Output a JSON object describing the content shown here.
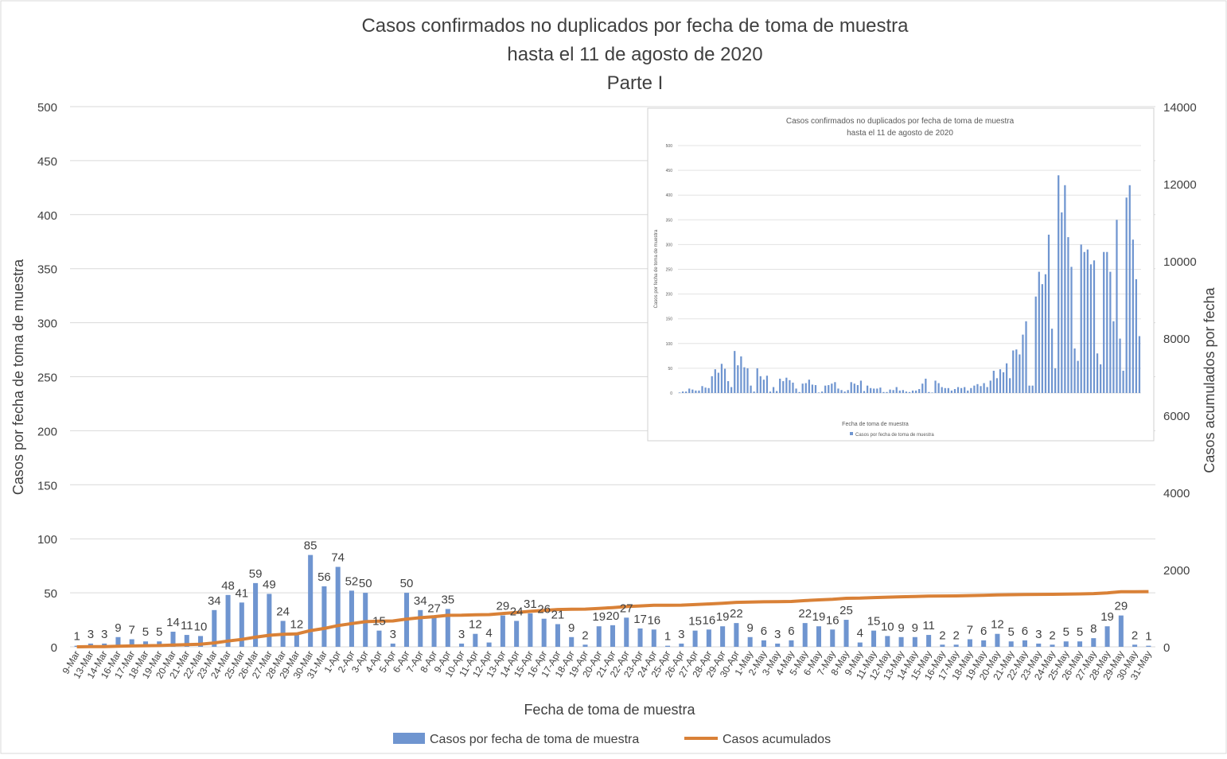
{
  "chart_data": [
    {
      "type": "bar",
      "title": [
        "Casos confirmados no duplicados por fecha de toma de muestra",
        "hasta el 11 de agosto de 2020",
        "Parte I"
      ],
      "xlabel": "Fecha de toma de muestra",
      "ylabel": "Casos por fecha de toma de muestra",
      "y2label": "Casos acumulados por fecha",
      "ylim": [
        0,
        500
      ],
      "y2lim": [
        0,
        14000
      ],
      "yticks": [
        "0",
        "50",
        "100",
        "150",
        "200",
        "250",
        "300",
        "350",
        "400",
        "450",
        "500"
      ],
      "y2ticks": [
        "0",
        "2000",
        "4000",
        "6000",
        "8000",
        "10000",
        "12000",
        "14000"
      ],
      "grid": true,
      "legend_position": "bottom",
      "categories": [
        "9-Mar",
        "13-Mar",
        "14-Mar",
        "16-Mar",
        "17-Mar",
        "18-Mar",
        "19-Mar",
        "20-Mar",
        "21-Mar",
        "22-Mar",
        "23-Mar",
        "24-Mar",
        "25-Mar",
        "26-Mar",
        "27-Mar",
        "28-Mar",
        "29-Mar",
        "30-Mar",
        "31-Mar",
        "1-Apr",
        "2-Apr",
        "3-Apr",
        "4-Apr",
        "5-Apr",
        "6-Apr",
        "7-Apr",
        "8-Apr",
        "9-Apr",
        "10-Apr",
        "11-Apr",
        "12-Apr",
        "13-Apr",
        "14-Apr",
        "15-Apr",
        "16-Apr",
        "17-Apr",
        "18-Apr",
        "19-Apr",
        "20-Apr",
        "21-Apr",
        "22-Apr",
        "23-Apr",
        "24-Apr",
        "25-Apr",
        "26-Apr",
        "27-Apr",
        "28-Apr",
        "29-Apr",
        "30-Apr",
        "1-May",
        "2-May",
        "3-May",
        "4-May",
        "5-May",
        "6-May",
        "7-May",
        "8-May",
        "9-May",
        "11-May",
        "12-May",
        "13-May",
        "14-May",
        "15-May",
        "16-May",
        "17-May",
        "18-May",
        "19-May",
        "20-May",
        "21-May",
        "22-May",
        "23-May",
        "24-May",
        "25-May",
        "26-May",
        "27-May",
        "28-May",
        "29-May",
        "30-May",
        "31-May"
      ],
      "series": [
        {
          "name": "Casos por fecha de toma de muestra",
          "type": "bar",
          "color": "#6f95d0",
          "values": [
            1,
            3,
            3,
            9,
            7,
            5,
            5,
            14,
            11,
            10,
            34,
            48,
            41,
            59,
            49,
            24,
            12,
            85,
            56,
            74,
            52,
            50,
            15,
            3,
            50,
            34,
            27,
            35,
            3,
            12,
            4,
            29,
            24,
            31,
            26,
            21,
            9,
            2,
            19,
            20,
            27,
            17,
            16,
            1,
            3,
            15,
            16,
            19,
            22,
            9,
            6,
            3,
            6,
            22,
            19,
            16,
            25,
            4,
            15,
            10,
            9,
            9,
            11,
            2,
            2,
            7,
            6,
            12,
            5,
            6,
            3,
            2,
            5,
            5,
            8,
            19,
            29,
            2,
            1
          ]
        },
        {
          "name": "Casos acumulados",
          "type": "line",
          "axis": "secondary",
          "color": "#d98137",
          "values": [
            1,
            4,
            7,
            16,
            23,
            28,
            33,
            47,
            58,
            68,
            102,
            150,
            191,
            250,
            299,
            323,
            335,
            420,
            476,
            550,
            602,
            652,
            667,
            670,
            720,
            754,
            781,
            816,
            819,
            831,
            835,
            864,
            888,
            919,
            945,
            966,
            975,
            977,
            996,
            1016,
            1043,
            1060,
            1076,
            1077,
            1080,
            1095,
            1111,
            1130,
            1152,
            1161,
            1167,
            1170,
            1176,
            1198,
            1217,
            1233,
            1258,
            1262,
            1277,
            1287,
            1296,
            1305,
            1316,
            1318,
            1320,
            1327,
            1333,
            1345,
            1350,
            1356,
            1359,
            1361,
            1366,
            1371,
            1379,
            1398,
            1427,
            1429,
            1430
          ]
        }
      ]
    },
    {
      "type": "bar",
      "title": [
        "Casos confirmados no duplicados por fecha de toma de muestra",
        "hasta el 11 de agosto de 2020"
      ],
      "xlabel": "Fecha de toma de muestra",
      "ylabel": "Casos por fecha de toma de muestra",
      "ylim": [
        0,
        500
      ],
      "yticks": [
        "0",
        "50",
        "100",
        "150",
        "200",
        "250",
        "300",
        "350",
        "400",
        "450",
        "500"
      ],
      "grid": true,
      "legend_position": "bottom",
      "series": [
        {
          "name": "Casos por fecha de toma de muestra",
          "color": "#6f95d0",
          "values": [
            1,
            3,
            3,
            9,
            7,
            5,
            5,
            14,
            11,
            10,
            34,
            48,
            41,
            59,
            49,
            24,
            12,
            85,
            56,
            74,
            52,
            50,
            15,
            3,
            50,
            34,
            27,
            35,
            3,
            12,
            4,
            29,
            24,
            31,
            26,
            21,
            9,
            2,
            19,
            20,
            27,
            17,
            16,
            1,
            3,
            15,
            16,
            19,
            22,
            9,
            6,
            3,
            6,
            22,
            19,
            16,
            25,
            4,
            15,
            10,
            9,
            9,
            11,
            2,
            2,
            7,
            6,
            12,
            5,
            6,
            3,
            2,
            5,
            5,
            8,
            19,
            29,
            2,
            1,
            25,
            20,
            12,
            10,
            10,
            5,
            8,
            12,
            10,
            12,
            5,
            10,
            15,
            18,
            14,
            20,
            12,
            25,
            45,
            30,
            48,
            42,
            60,
            30,
            86,
            88,
            78,
            118,
            145,
            15,
            15,
            195,
            245,
            220,
            240,
            320,
            130,
            50,
            440,
            365,
            420,
            315,
            255,
            90,
            65,
            300,
            285,
            290,
            260,
            268,
            80,
            58,
            285,
            285,
            245,
            145,
            350,
            110,
            45,
            395,
            420,
            310,
            230,
            115
          ]
        }
      ]
    }
  ]
}
